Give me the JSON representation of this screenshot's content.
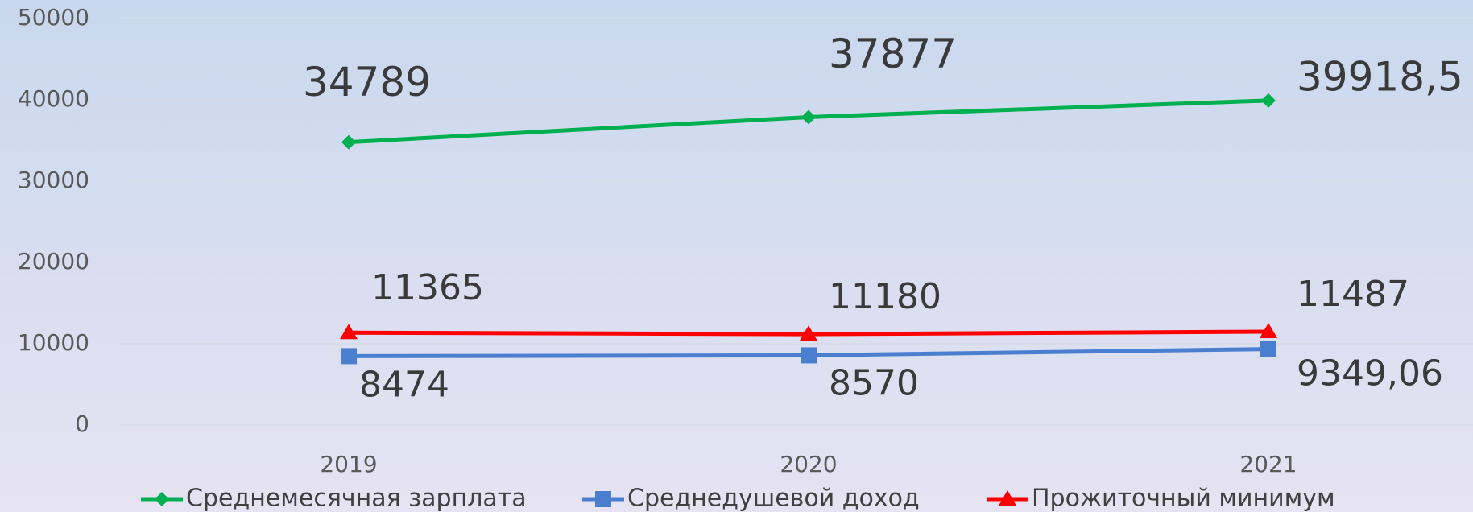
{
  "chart_data": {
    "type": "line",
    "categories": [
      "2019",
      "2020",
      "2021"
    ],
    "series": [
      {
        "name": "Среднемесячная зарплата",
        "color": "#00b050",
        "marker": "diamond",
        "values": [
          34789,
          37877,
          39918.5
        ],
        "value_labels": [
          "34789",
          "37877",
          "39918,5"
        ]
      },
      {
        "name": "Среднедушевой доход",
        "color": "#4a7fd0",
        "marker": "square",
        "values": [
          8474,
          8570,
          9349.06
        ],
        "value_labels": [
          "8474",
          "8570",
          "9349,06"
        ]
      },
      {
        "name": "Прожиточный минимум",
        "color": "#ff0000",
        "marker": "triangle",
        "values": [
          11365,
          11180,
          11487
        ]
      }
    ],
    "ylim": [
      0,
      50000
    ],
    "yticks": [
      0,
      10000,
      20000,
      30000,
      40000,
      50000
    ],
    "grid": true
  }
}
